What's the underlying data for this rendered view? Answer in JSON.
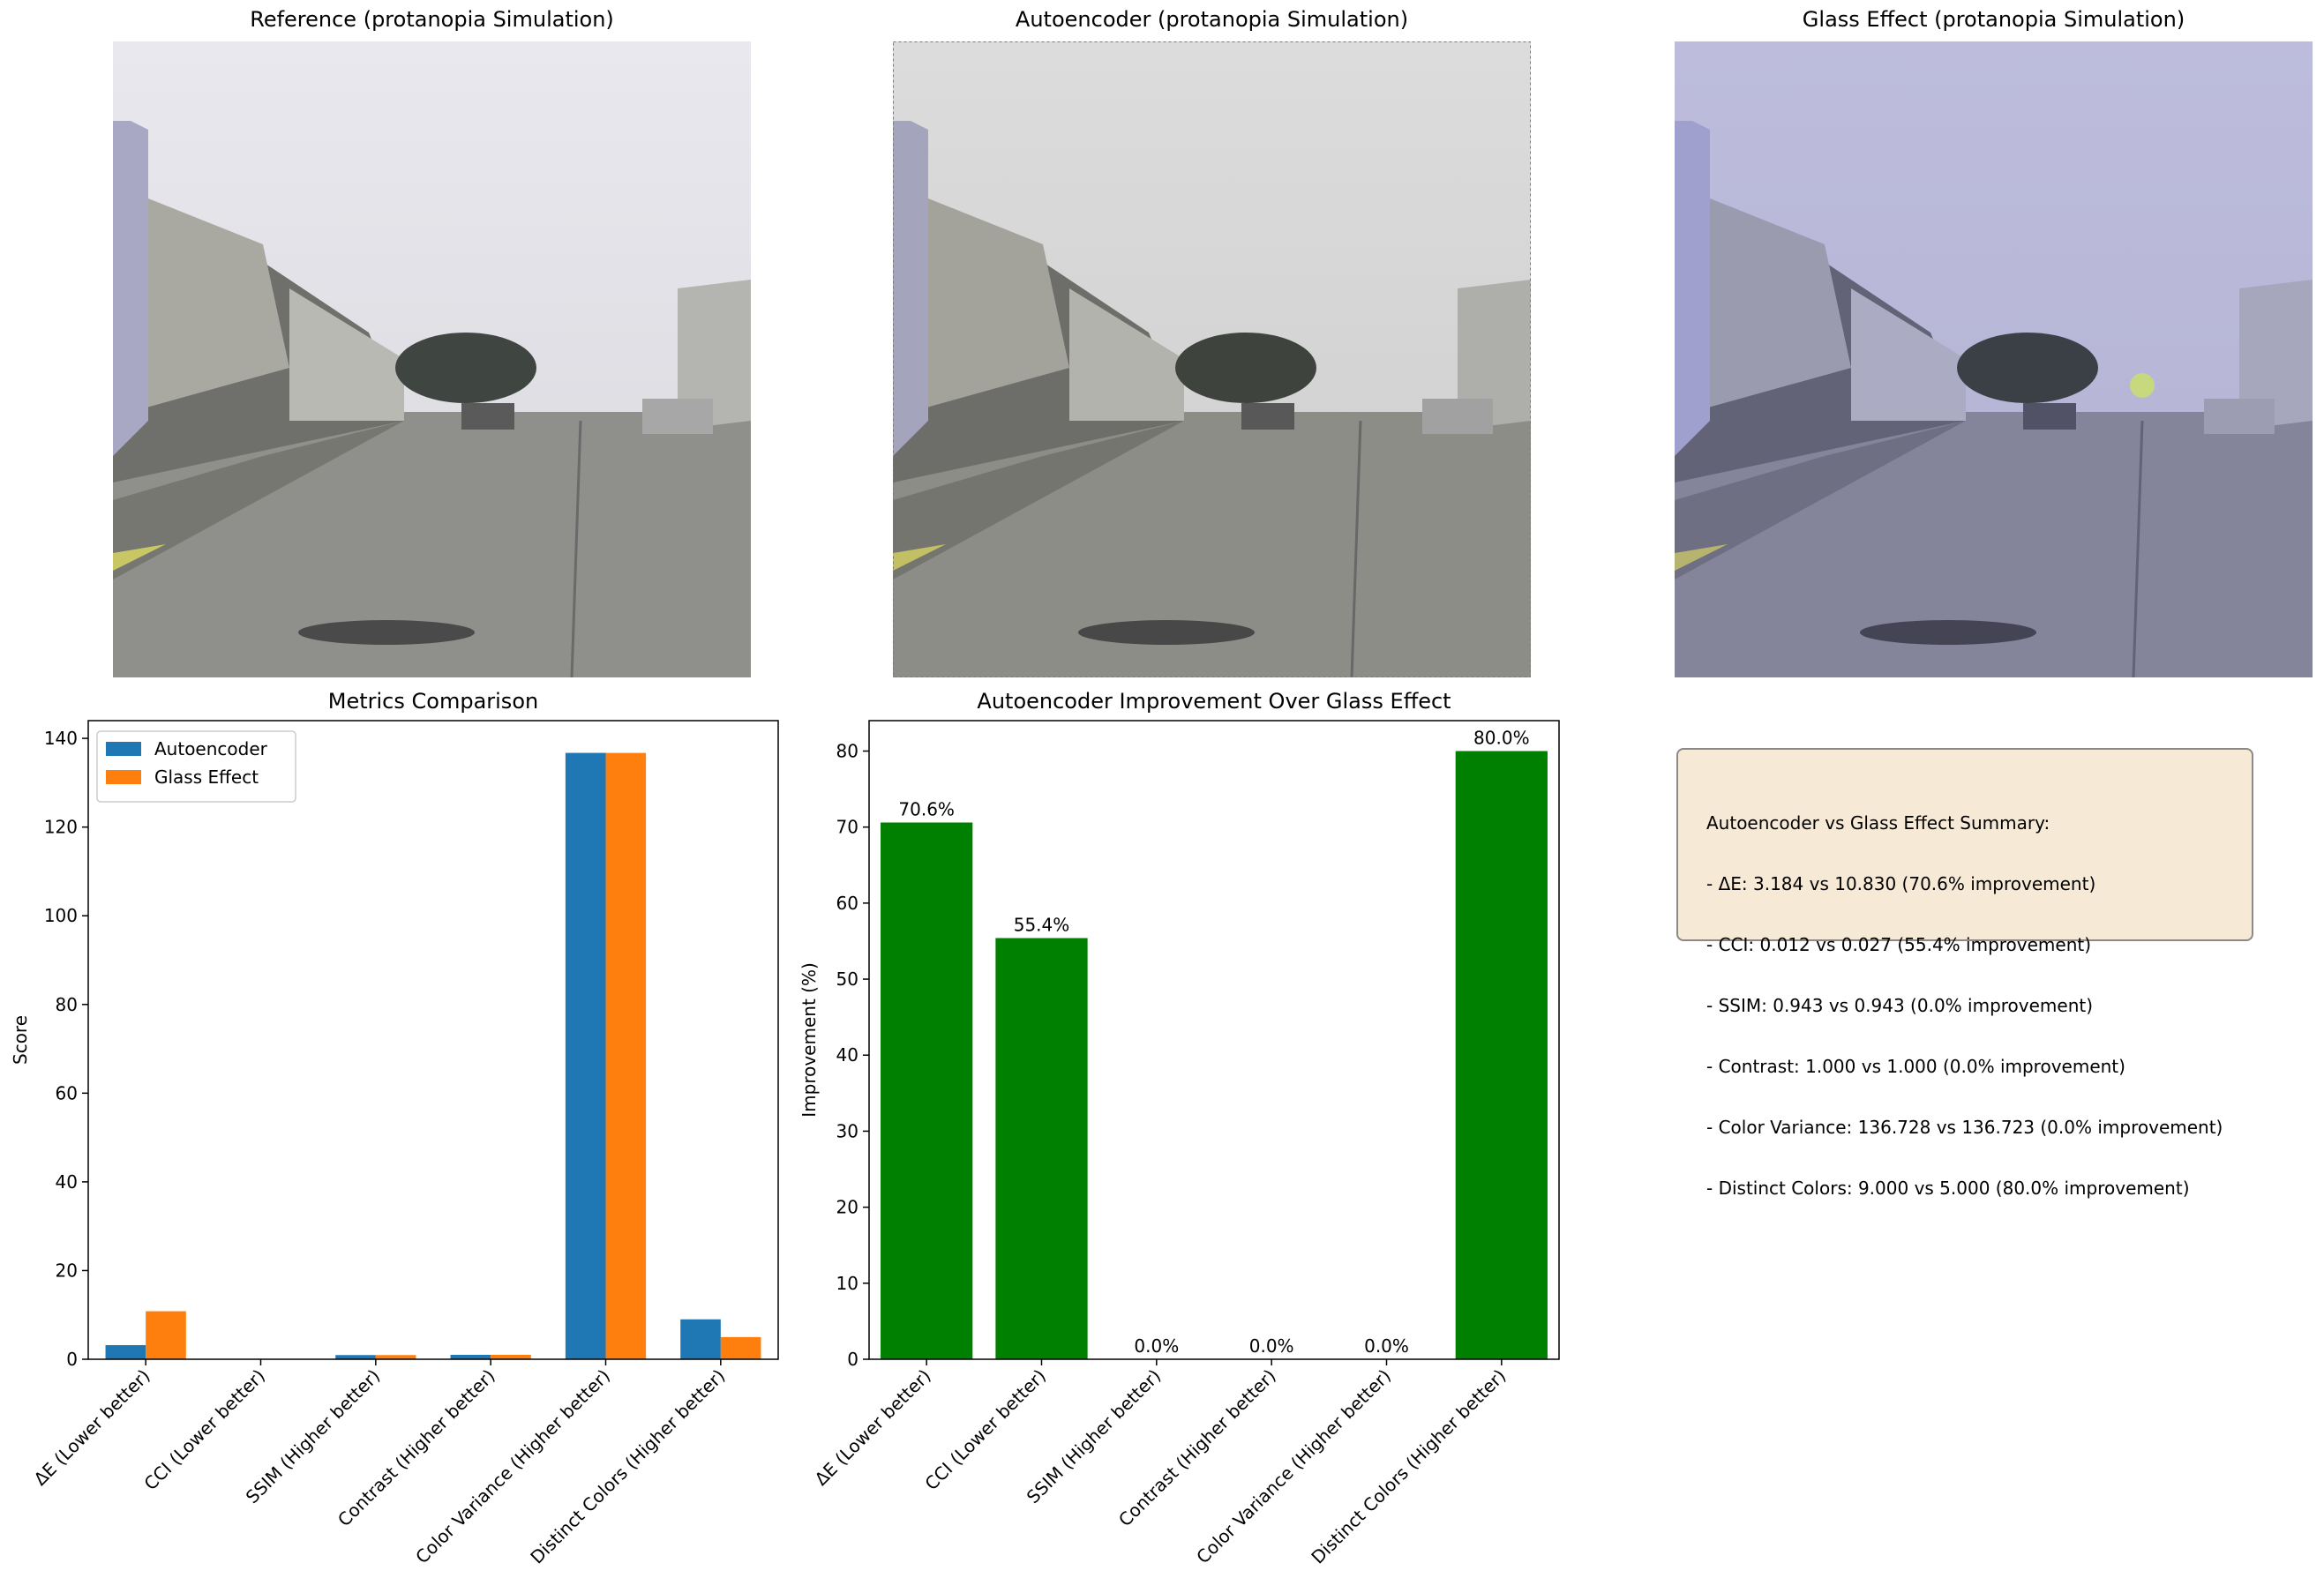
{
  "panels": {
    "reference_title": "Reference (protanopia Simulation)",
    "autoencoder_title": "Autoencoder (protanopia Simulation)",
    "glass_title": "Glass Effect (protanopia Simulation)"
  },
  "colors": {
    "autoencoder": "#1f77b4",
    "glass": "#ff7f0e",
    "improvement": "#008000",
    "summary_bg": "#f5e9d4"
  },
  "chart_data": [
    {
      "type": "bar",
      "title": "Metrics Comparison",
      "ylabel": "Score",
      "xlabel": "",
      "ylim": [
        0,
        144
      ],
      "yticks": [
        0,
        20,
        40,
        60,
        80,
        100,
        120,
        140
      ],
      "categories": [
        "ΔE (Lower better)",
        "CCI (Lower better)",
        "SSIM (Higher better)",
        "Contrast (Higher better)",
        "Color Variance (Higher better)",
        "Distinct Colors (Higher better)"
      ],
      "series": [
        {
          "name": "Autoencoder",
          "values": [
            3.184,
            0.012,
            0.943,
            1.0,
            136.728,
            9.0
          ]
        },
        {
          "name": "Glass Effect",
          "values": [
            10.83,
            0.027,
            0.943,
            1.0,
            136.723,
            5.0
          ]
        }
      ],
      "legend": "top-left"
    },
    {
      "type": "bar",
      "title": "Autoencoder Improvement Over Glass Effect",
      "ylabel": "Improvement (%)",
      "xlabel": "",
      "ylim": [
        0,
        84
      ],
      "yticks": [
        0,
        10,
        20,
        30,
        40,
        50,
        60,
        70,
        80
      ],
      "categories": [
        "ΔE (Lower better)",
        "CCI (Lower better)",
        "SSIM (Higher better)",
        "Contrast (Higher better)",
        "Color Variance (Higher better)",
        "Distinct Colors (Higher better)"
      ],
      "values": [
        70.6,
        55.4,
        0.0,
        0.0,
        0.0,
        80.0
      ],
      "data_labels": [
        "70.6%",
        "55.4%",
        "0.0%",
        "0.0%",
        "0.0%",
        "80.0%"
      ]
    }
  ],
  "summary": {
    "heading": "Autoencoder vs Glass Effect Summary:",
    "lines": [
      "- ΔE: 3.184 vs 10.830 (70.6% improvement)",
      "- CCI: 0.012 vs 0.027 (55.4% improvement)",
      "- SSIM: 0.943 vs 0.943 (0.0% improvement)",
      "- Contrast: 1.000 vs 1.000 (0.0% improvement)",
      "- Color Variance: 136.728 vs 136.723 (0.0% improvement)",
      "- Distinct Colors: 9.000 vs 5.000 (80.0% improvement)"
    ]
  }
}
